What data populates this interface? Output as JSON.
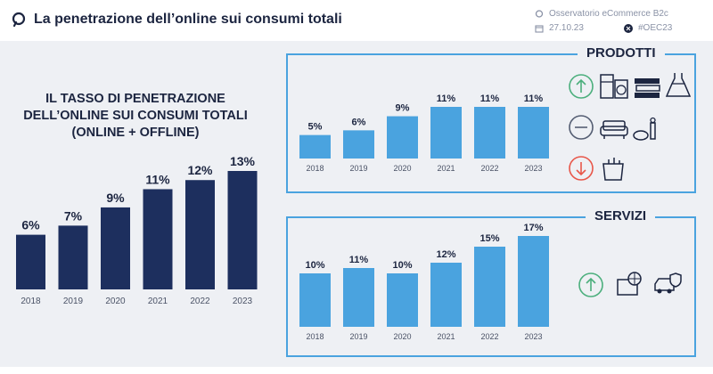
{
  "header": {
    "title": "La penetrazione dell’online sui consumi totali",
    "source": "Osservatorio eCommerce B2c",
    "date": "27.10.23",
    "hashtag": "#OEC23"
  },
  "left": {
    "title": "IL TASSO DI PENETRAZIONE DELL’ONLINE SUI CONSUMI TOTALI (ONLINE + OFFLINE)"
  },
  "prodotti": {
    "title": "PRODOTTI",
    "icons": [
      "arrow-up-icon",
      "appliances-icon",
      "books-icon",
      "dress-icon",
      "minus-icon",
      "sofa-icon",
      "cosmetics-icon",
      "arrow-down-icon",
      "grocery-bag-icon"
    ]
  },
  "servizi": {
    "title": "SERVIZI",
    "icons": [
      "arrow-up-icon",
      "travel-booking-icon",
      "car-insurance-icon"
    ]
  },
  "colors": {
    "navy_bar": "#1d2f5e",
    "blue_bar": "#4aa3df",
    "panel_border": "#4aa3df",
    "arrow_up": "#4caf7d",
    "arrow_down": "#e8574a"
  },
  "chart_data": [
    {
      "type": "bar",
      "categories": [
        "2018",
        "2019",
        "2020",
        "2021",
        "2022",
        "2023"
      ],
      "values": [
        6,
        7,
        9,
        11,
        12,
        13
      ],
      "labels": [
        "6%",
        "7%",
        "9%",
        "11%",
        "12%",
        "13%"
      ],
      "title": "IL TASSO DI PENETRAZIONE DELL’ONLINE SUI CONSUMI TOTALI (ONLINE + OFFLINE)",
      "xlabel": "",
      "ylabel": "",
      "ylim": [
        0,
        13
      ]
    },
    {
      "type": "bar",
      "categories": [
        "2018",
        "2019",
        "2020",
        "2021",
        "2022",
        "2023"
      ],
      "values": [
        5,
        6,
        9,
        11,
        11,
        11
      ],
      "labels": [
        "5%",
        "6%",
        "9%",
        "11%",
        "11%",
        "11%"
      ],
      "title": "PRODOTTI",
      "xlabel": "",
      "ylabel": "",
      "ylim": [
        0,
        11
      ]
    },
    {
      "type": "bar",
      "categories": [
        "2018",
        "2019",
        "2020",
        "2021",
        "2022",
        "2023"
      ],
      "values": [
        10,
        11,
        10,
        12,
        15,
        17
      ],
      "labels": [
        "10%",
        "11%",
        "10%",
        "12%",
        "15%",
        "17%"
      ],
      "title": "SERVIZI",
      "xlabel": "",
      "ylabel": "",
      "ylim": [
        0,
        17
      ]
    }
  ]
}
